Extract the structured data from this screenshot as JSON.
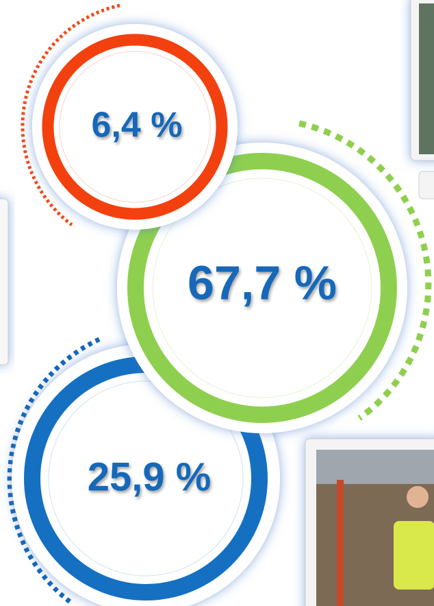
{
  "circles": [
    {
      "label": "25,9 %"
    },
    {
      "label": "67,7 %"
    },
    {
      "label": "6,4 %"
    }
  ]
}
